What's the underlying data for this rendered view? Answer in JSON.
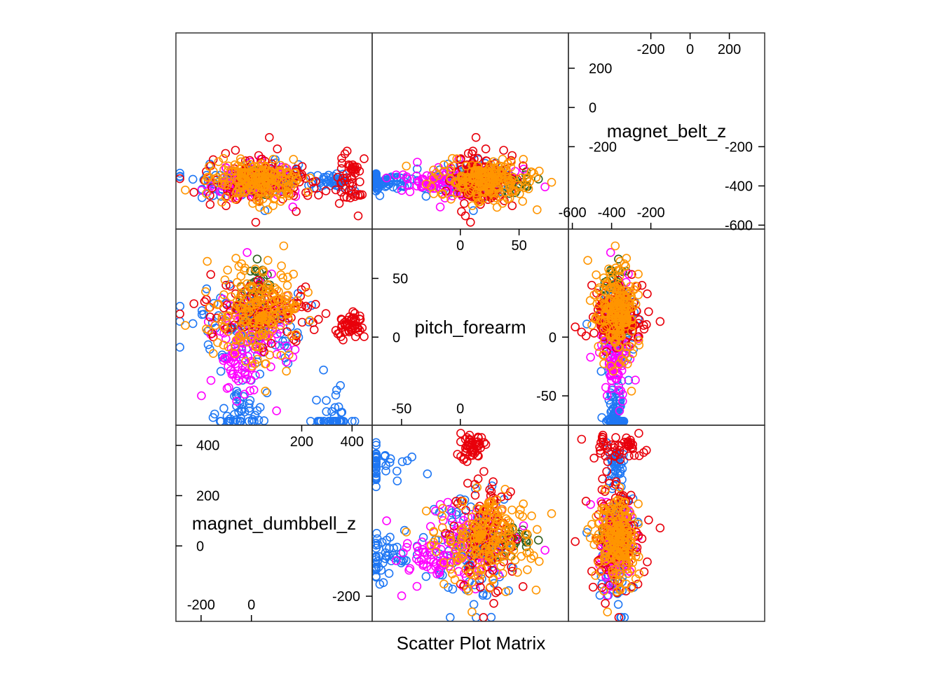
{
  "chart_data": {
    "type": "scatter",
    "layout": "scatter-plot-matrix",
    "xlabel": "Scatter Plot Matrix",
    "variables": [
      {
        "name": "magnet_dumbbell_z",
        "range": [
          -300,
          480
        ],
        "upper_ticks": [
          200,
          400
        ],
        "lower_ticks": [
          -200,
          0
        ],
        "left_ticks": [
          0,
          200,
          400
        ],
        "right_ticks": [
          -200
        ]
      },
      {
        "name": "pitch_forearm",
        "range": [
          -75,
          92
        ],
        "upper_ticks": [
          0,
          50
        ],
        "lower_ticks": [
          -50,
          0
        ],
        "left_ticks": [
          0,
          50
        ],
        "right_ticks": [
          -50,
          0
        ]
      },
      {
        "name": "magnet_belt_z",
        "range": [
          -620,
          380
        ],
        "upper_ticks": [
          -200,
          0,
          200
        ],
        "lower_ticks": [
          -600,
          -400,
          -200
        ],
        "left_ticks": [
          -200,
          0,
          200
        ],
        "right_ticks": [
          -600,
          -400,
          -200
        ]
      }
    ],
    "groups": [
      {
        "color": "#2D5F1E",
        "legend": ""
      },
      {
        "color": "#1F77F4",
        "legend": ""
      },
      {
        "color": "#FF00FF",
        "legend": ""
      },
      {
        "color": "#E8000B",
        "legend": ""
      },
      {
        "color": "#FF9500",
        "legend": ""
      }
    ],
    "clusters": [
      {
        "g": 0,
        "cx": 30,
        "cy": 20,
        "sx": 18,
        "sy": 5,
        "s3": 60,
        "n": 50
      },
      {
        "g": 1,
        "cx": 10,
        "cy": -10,
        "sx": 18,
        "sy": 22,
        "s3": 70,
        "n": 90
      },
      {
        "g": 1,
        "cx": -60,
        "cy": -50,
        "sx": 14,
        "sy": 8,
        "s3": 40,
        "n": 50
      },
      {
        "g": 1,
        "cx": -90,
        "cy": 330,
        "sx": 25,
        "sy": 6,
        "s3": 30,
        "n": 40
      },
      {
        "g": 2,
        "cx": 0,
        "cy": 15,
        "sx": 22,
        "sy": 14,
        "s3": 80,
        "n": 90
      },
      {
        "g": 2,
        "cx": -30,
        "cy": -40,
        "sx": 12,
        "sy": 5,
        "s3": 40,
        "n": 30
      },
      {
        "g": 3,
        "cx": 20,
        "cy": 40,
        "sx": 14,
        "sy": 20,
        "s3": 120,
        "n": 110
      },
      {
        "g": 3,
        "cx": 10,
        "cy": 400,
        "sx": 5,
        "sy": 5,
        "s3": 110,
        "n": 50
      },
      {
        "g": 4,
        "cx": 20,
        "cy": 20,
        "sx": 22,
        "sy": 15,
        "s3": 90,
        "n": 160
      },
      {
        "g": 4,
        "cx": 25,
        "cy": 60,
        "sx": 8,
        "sy": 12,
        "s3": 60,
        "n": 40
      }
    ]
  }
}
